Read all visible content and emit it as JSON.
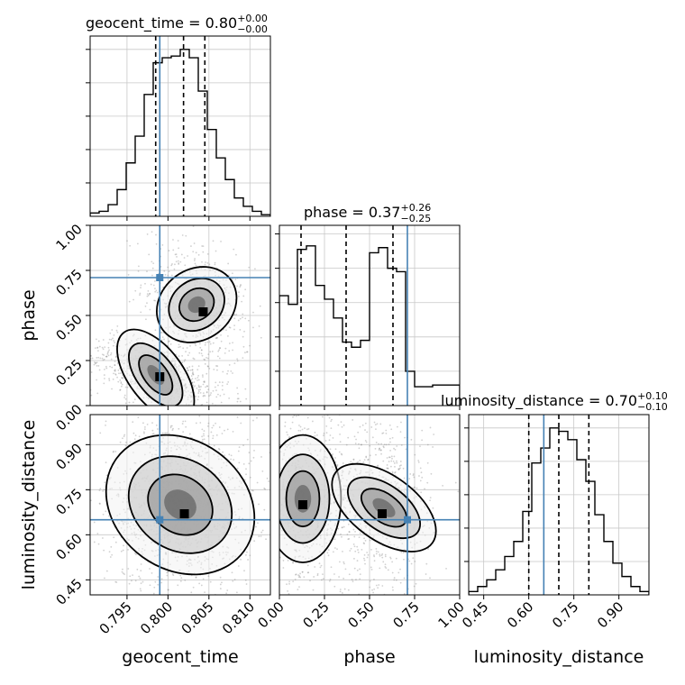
{
  "chart_data": {
    "type": "corner",
    "parameters": [
      "geocent_time",
      "phase",
      "luminosity_distance"
    ],
    "truths": [
      0.799,
      0.71,
      0.65
    ],
    "truth_color": "#4682b4",
    "ranges": {
      "geocent_time": [
        0.7905,
        0.8125
      ],
      "phase": [
        0.0,
        1.0
      ],
      "luminosity_distance": [
        0.4,
        1.0
      ]
    },
    "axes": {
      "geocent_time": {
        "xlabel": "geocent_time",
        "ticks": [
          0.795,
          0.8,
          0.805,
          0.81
        ],
        "tick_labels": [
          "0.795",
          "0.800",
          "0.805",
          "0.810"
        ]
      },
      "phase": {
        "xlabel": "phase",
        "ylabel": "phase",
        "ticks": [
          0.0,
          0.25,
          0.5,
          0.75,
          1.0
        ],
        "tick_labels": [
          "0.00",
          "0.25",
          "0.50",
          "0.75",
          "1.00"
        ]
      },
      "luminosity_distance": {
        "xlabel": "luminosity_distance",
        "ylabel": "luminosity_distance",
        "ticks": [
          0.45,
          0.6,
          0.75,
          0.9
        ],
        "tick_labels": [
          "0.45",
          "0.60",
          "0.75",
          "0.90"
        ]
      }
    },
    "titles": [
      {
        "param": "geocent_time",
        "label": "geocent_time = 0.80",
        "plus": "+0.00",
        "minus": "−0.00"
      },
      {
        "param": "phase",
        "label": "phase = 0.37",
        "plus": "+0.26",
        "minus": "−0.25"
      },
      {
        "param": "luminosity_distance",
        "label": "luminosity_distance = 0.70",
        "plus": "+0.10",
        "minus": "−0.10"
      }
    ],
    "quantiles": {
      "geocent_time": [
        0.7985,
        0.8019,
        0.8045
      ],
      "phase": [
        0.12,
        0.37,
        0.63
      ],
      "luminosity_distance": [
        0.6,
        0.7,
        0.8
      ]
    },
    "histograms": {
      "geocent_time": {
        "edges": [
          0.7905,
          0.7916,
          0.7927,
          0.7938,
          0.7949,
          0.796,
          0.7971,
          0.7982,
          0.7993,
          0.8004,
          0.8015,
          0.8026,
          0.8037,
          0.8048,
          0.8059,
          0.807,
          0.8081,
          0.8092,
          0.8103,
          0.8114,
          0.8125
        ],
        "counts": [
          0.02,
          0.03,
          0.07,
          0.16,
          0.32,
          0.48,
          0.73,
          0.92,
          0.95,
          0.96,
          1.0,
          0.95,
          0.75,
          0.52,
          0.35,
          0.22,
          0.11,
          0.06,
          0.03,
          0.01
        ],
        "ylim": [
          0,
          1.08
        ]
      },
      "phase": {
        "edges": [
          0.0,
          0.05,
          0.1,
          0.15,
          0.2,
          0.25,
          0.3,
          0.35,
          0.4,
          0.45,
          0.5,
          0.55,
          0.6,
          0.65,
          0.7,
          0.75,
          0.8,
          0.85,
          0.9,
          0.95,
          1.0
        ],
        "counts": [
          0.64,
          0.59,
          0.91,
          0.93,
          0.7,
          0.62,
          0.51,
          0.37,
          0.34,
          0.38,
          0.89,
          0.92,
          0.8,
          0.78,
          0.2,
          0.11,
          0.11,
          0.12,
          0.12,
          0.12
        ],
        "ylim": [
          0,
          1.05
        ]
      },
      "luminosity_distance": {
        "edges": [
          0.4,
          0.43,
          0.46,
          0.49,
          0.52,
          0.55,
          0.58,
          0.61,
          0.64,
          0.67,
          0.7,
          0.73,
          0.76,
          0.79,
          0.82,
          0.85,
          0.88,
          0.91,
          0.94,
          0.97,
          1.0
        ],
        "counts": [
          0.02,
          0.05,
          0.09,
          0.15,
          0.23,
          0.32,
          0.5,
          0.79,
          0.88,
          1.0,
          0.98,
          0.93,
          0.81,
          0.68,
          0.48,
          0.32,
          0.19,
          0.11,
          0.05,
          0.02
        ],
        "ylim": [
          0,
          1.08
        ]
      }
    },
    "panels_2d": [
      {
        "x": "geocent_time",
        "y": "phase",
        "modes": [
          {
            "mx": 0.8035,
            "my": 0.56,
            "sx": 0.0022,
            "sy": 0.12,
            "rho": -0.35,
            "w": 0.42,
            "core": [
              0.8043,
              0.52
            ]
          },
          {
            "mx": 0.7985,
            "my": 0.17,
            "sx": 0.003,
            "sy": 0.07,
            "rho": -0.55,
            "w": 0.58,
            "core": [
              0.799,
              0.16
            ]
          }
        ]
      },
      {
        "x": "geocent_time",
        "y": "luminosity_distance",
        "modes": [
          {
            "mx": 0.8015,
            "my": 0.7,
            "sx": 0.003,
            "sy": 0.1,
            "rho": 0.0,
            "w": 1.0,
            "core": [
              0.802,
              0.67
            ]
          }
        ]
      },
      {
        "x": "phase",
        "y": "luminosity_distance",
        "modes": [
          {
            "mx": 0.13,
            "my": 0.72,
            "sx": 0.1,
            "sy": 0.1,
            "rho": 0.0,
            "w": 0.55,
            "core": [
              0.13,
              0.7
            ]
          },
          {
            "mx": 0.58,
            "my": 0.69,
            "sx": 0.09,
            "sy": 0.1,
            "rho": 0.0,
            "w": 0.45,
            "core": [
              0.57,
              0.67
            ]
          }
        ]
      }
    ],
    "contour_levels": [
      0.393,
      0.865,
      0.989
    ],
    "grid": true
  }
}
